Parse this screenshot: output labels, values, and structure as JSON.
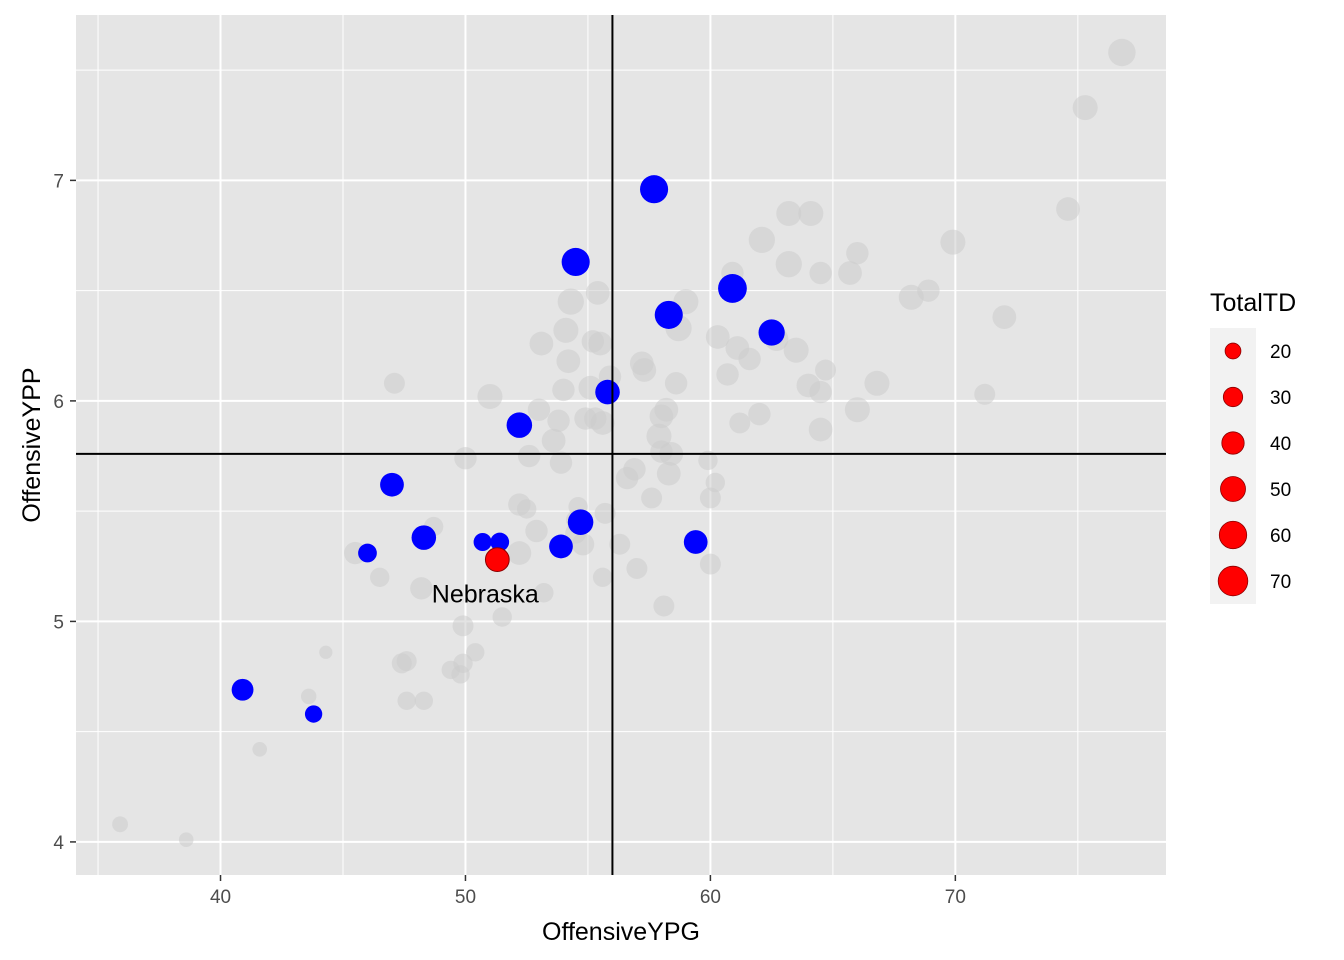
{
  "chart_data": {
    "type": "scatter",
    "xlabel": "OffensiveYPG",
    "ylabel": "OffensiveYPP",
    "xlim": [
      34.1,
      78.6
    ],
    "ylim": [
      3.85,
      7.75
    ],
    "x_ticks": [
      40,
      50,
      60,
      70
    ],
    "y_ticks": [
      4,
      5,
      6,
      7
    ],
    "grid": true,
    "reference_lines": {
      "vertical_x": 56.0,
      "horizontal_y": 5.76
    },
    "size_variable": "TotalTD",
    "legend": {
      "title": "TotalTD",
      "placement": "right",
      "entries": [
        20,
        30,
        40,
        50,
        60,
        70
      ]
    },
    "colors": {
      "background": "#e5e5e5",
      "grid": "#ffffff",
      "other": "#cccccc",
      "highlight": "#0000ff",
      "focus": "#ff0000",
      "reference_line": "#000000"
    },
    "annotation": {
      "text": "Nebraska",
      "x": 51.3,
      "y": 5.28
    },
    "series": [
      {
        "name": "other",
        "points": [
          [
            35.9,
            4.08,
            20
          ],
          [
            38.6,
            4.01,
            17
          ],
          [
            41.6,
            4.42,
            17
          ],
          [
            43.6,
            4.66,
            19
          ],
          [
            44.3,
            4.86,
            14
          ],
          [
            45.5,
            5.31,
            40
          ],
          [
            46.5,
            5.2,
            30
          ],
          [
            47.1,
            6.08,
            35
          ],
          [
            47.4,
            4.81,
            32
          ],
          [
            47.6,
            4.82,
            32
          ],
          [
            47.6,
            4.64,
            27
          ],
          [
            48.3,
            4.64,
            27
          ],
          [
            48.2,
            5.15,
            40
          ],
          [
            48.7,
            5.43,
            30
          ],
          [
            49.4,
            4.78,
            27
          ],
          [
            49.8,
            4.76,
            27
          ],
          [
            49.9,
            4.81,
            30
          ],
          [
            49.9,
            4.98,
            35
          ],
          [
            50.0,
            5.74,
            40
          ],
          [
            50.4,
            4.86,
            27
          ],
          [
            51.0,
            6.02,
            50
          ],
          [
            51.5,
            5.02,
            30
          ],
          [
            52.2,
            5.31,
            45
          ],
          [
            52.2,
            5.53,
            40
          ],
          [
            52.5,
            5.51,
            30
          ],
          [
            52.6,
            5.75,
            40
          ],
          [
            52.9,
            5.41,
            40
          ],
          [
            53.0,
            5.96,
            40
          ],
          [
            53.1,
            6.26,
            45
          ],
          [
            53.2,
            5.13,
            30
          ],
          [
            53.6,
            5.82,
            45
          ],
          [
            53.8,
            5.91,
            40
          ],
          [
            53.9,
            5.72,
            40
          ],
          [
            54.0,
            6.05,
            40
          ],
          [
            54.1,
            6.32,
            50
          ],
          [
            54.2,
            6.18,
            45
          ],
          [
            54.3,
            6.45,
            55
          ],
          [
            54.5,
            5.46,
            30
          ],
          [
            54.5,
            5.4,
            35
          ],
          [
            54.6,
            5.52,
            30
          ],
          [
            54.8,
            5.35,
            40
          ],
          [
            54.9,
            5.92,
            40
          ],
          [
            55.1,
            6.06,
            45
          ],
          [
            55.2,
            6.27,
            40
          ],
          [
            55.3,
            5.92,
            40
          ],
          [
            55.4,
            6.49,
            45
          ],
          [
            55.5,
            6.26,
            45
          ],
          [
            55.6,
            5.9,
            45
          ],
          [
            55.6,
            5.2,
            30
          ],
          [
            55.7,
            5.49,
            35
          ],
          [
            55.9,
            6.11,
            40
          ],
          [
            56.3,
            5.35,
            35
          ],
          [
            56.6,
            5.65,
            40
          ],
          [
            56.9,
            5.69,
            40
          ],
          [
            57.0,
            5.24,
            35
          ],
          [
            57.2,
            6.17,
            45
          ],
          [
            57.3,
            6.14,
            45
          ],
          [
            57.6,
            5.56,
            35
          ],
          [
            57.9,
            5.84,
            50
          ],
          [
            58.0,
            5.93,
            45
          ],
          [
            58.0,
            5.77,
            40
          ],
          [
            58.1,
            5.07,
            35
          ],
          [
            58.2,
            5.96,
            45
          ],
          [
            58.3,
            5.67,
            45
          ],
          [
            58.4,
            5.76,
            45
          ],
          [
            58.6,
            6.08,
            40
          ],
          [
            58.7,
            6.33,
            55
          ],
          [
            59.0,
            6.45,
            50
          ],
          [
            59.9,
            5.73,
            30
          ],
          [
            60.0,
            5.26,
            35
          ],
          [
            60.0,
            5.56,
            35
          ],
          [
            60.2,
            5.63,
            30
          ],
          [
            60.3,
            6.29,
            45
          ],
          [
            60.7,
            6.12,
            40
          ],
          [
            60.9,
            6.58,
            40
          ],
          [
            61.1,
            6.24,
            45
          ],
          [
            61.2,
            5.9,
            35
          ],
          [
            61.6,
            6.19,
            40
          ],
          [
            62.0,
            5.94,
            40
          ],
          [
            62.1,
            6.73,
            55
          ],
          [
            62.7,
            6.28,
            45
          ],
          [
            63.2,
            6.62,
            55
          ],
          [
            63.2,
            6.85,
            50
          ],
          [
            63.5,
            6.23,
            50
          ],
          [
            64.0,
            6.07,
            45
          ],
          [
            64.1,
            6.85,
            50
          ],
          [
            64.5,
            6.04,
            40
          ],
          [
            64.5,
            6.58,
            40
          ],
          [
            64.5,
            5.87,
            45
          ],
          [
            64.7,
            6.14,
            35
          ],
          [
            65.7,
            6.58,
            45
          ],
          [
            66.0,
            6.67,
            40
          ],
          [
            66.0,
            5.96,
            50
          ],
          [
            66.8,
            6.08,
            50
          ],
          [
            68.2,
            6.47,
            50
          ],
          [
            68.9,
            6.5,
            40
          ],
          [
            69.9,
            6.72,
            50
          ],
          [
            71.2,
            6.03,
            35
          ],
          [
            72.0,
            6.38,
            45
          ],
          [
            74.6,
            6.87,
            45
          ],
          [
            75.3,
            7.33,
            50
          ],
          [
            76.8,
            7.58,
            60
          ]
        ]
      },
      {
        "name": "highlight",
        "points": [
          [
            40.9,
            4.69,
            38
          ],
          [
            43.8,
            4.58,
            24
          ],
          [
            46.0,
            5.31,
            28
          ],
          [
            47.0,
            5.62,
            45
          ],
          [
            48.3,
            5.38,
            48
          ],
          [
            50.7,
            5.36,
            26
          ],
          [
            51.4,
            5.36,
            28
          ],
          [
            52.2,
            5.89,
            52
          ],
          [
            53.9,
            5.34,
            45
          ],
          [
            54.5,
            6.63,
            63
          ],
          [
            54.7,
            5.45,
            52
          ],
          [
            55.8,
            6.04,
            48
          ],
          [
            57.7,
            6.96,
            63
          ],
          [
            58.3,
            6.39,
            63
          ],
          [
            59.4,
            5.36,
            45
          ],
          [
            60.9,
            6.51,
            66
          ],
          [
            62.5,
            6.31,
            55
          ]
        ]
      },
      {
        "name": "focus",
        "points": [
          [
            51.3,
            5.28,
            45
          ]
        ]
      }
    ]
  }
}
